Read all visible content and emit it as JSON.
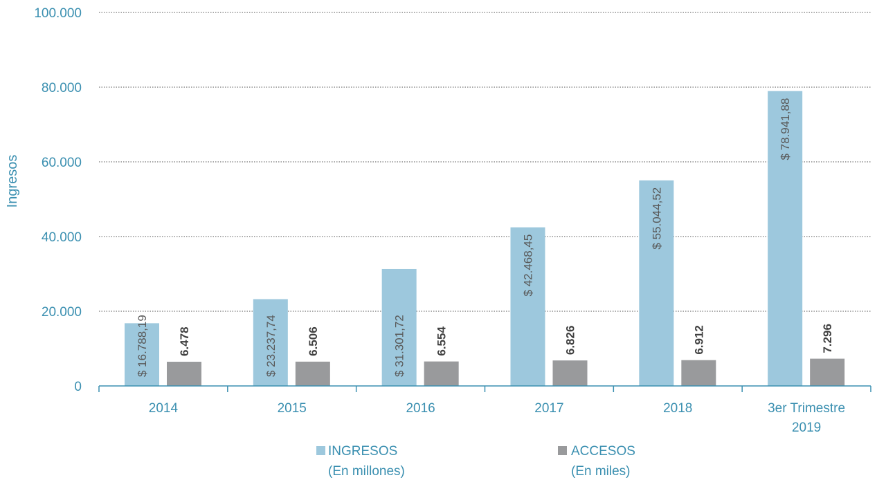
{
  "chart_data": {
    "type": "bar",
    "categories": [
      "2014",
      "2015",
      "2016",
      "2017",
      "2018",
      [
        "3er Trimestre",
        "2019"
      ]
    ],
    "series": [
      {
        "name": [
          "INGRESOS",
          "(En millones)"
        ],
        "color": "#9dc8dd",
        "values": [
          16788.19,
          23237.74,
          31301.72,
          42468.45,
          55044.52,
          78941.88
        ],
        "labels": [
          "$ 16.788,19",
          "$ 23.237,74",
          "$ 31.301,72",
          "$ 42.468,45",
          "$ 55.044,52",
          "$ 78.941,88"
        ]
      },
      {
        "name": [
          "ACCESOS",
          "(En miles)"
        ],
        "color": "#999a9c",
        "values": [
          6478,
          6506,
          6554,
          6826,
          6912,
          7296
        ],
        "labels": [
          "6.478",
          "6.506",
          "6.554",
          "6.826",
          "6.912",
          "7.296"
        ]
      }
    ],
    "ylabel": "Ingresos",
    "ylim": [
      0,
      100000
    ],
    "yticks": [
      0,
      20000,
      40000,
      60000,
      80000,
      100000
    ],
    "ytick_labels": [
      "0",
      "20.000",
      "40.000",
      "60.000",
      "80.000",
      "100.000"
    ],
    "grid": "dotted horizontal",
    "legend_position": "bottom"
  }
}
